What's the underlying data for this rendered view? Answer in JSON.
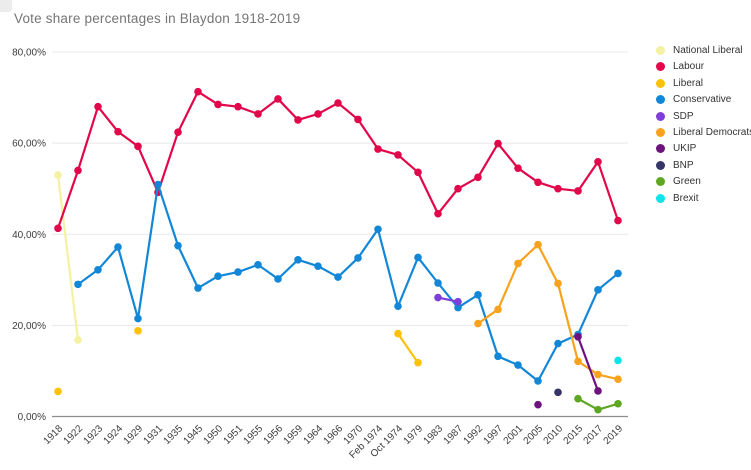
{
  "title": "Vote share percentages in Blaydon 1918-2019",
  "colors": {
    "background": "#ffffff",
    "title_text": "#757575",
    "grid_line": "#e8e8e8",
    "axis_line": "#8c8c8c",
    "tick_label": "#3d3d3d",
    "legend_label": "#333333"
  },
  "chart_data": {
    "type": "line",
    "title": "Vote share percentages in Blaydon 1918-2019",
    "xlabel": "",
    "ylabel": "",
    "grid": true,
    "legend_position": "right",
    "y_axis": {
      "min": 0,
      "max": 80,
      "tick_step": 20,
      "ticks": [
        "0,00%",
        "20,00%",
        "40,00%",
        "60,00%",
        "80,00%"
      ]
    },
    "categories": [
      "1918",
      "1922",
      "1923",
      "1924",
      "1929",
      "1931",
      "1935",
      "1945",
      "1950",
      "1951",
      "1955",
      "1956",
      "1959",
      "1964",
      "1966",
      "1970",
      "Feb 1974",
      "Oct 1974",
      "1979",
      "1983",
      "1987",
      "1992",
      "1997",
      "2001",
      "2005",
      "2010",
      "2015",
      "2017",
      "2019"
    ],
    "series": [
      {
        "name": "National Liberal",
        "color": "#f4f1a1",
        "values": [
          53,
          16.8,
          null,
          null,
          null,
          null,
          null,
          null,
          null,
          null,
          null,
          null,
          null,
          null,
          null,
          null,
          null,
          null,
          null,
          null,
          null,
          null,
          null,
          null,
          null,
          null,
          null,
          null,
          null
        ]
      },
      {
        "name": "Labour",
        "color": "#e2064a",
        "values": [
          41.3,
          54,
          68,
          62.5,
          59.3,
          49.2,
          62.4,
          71.3,
          68.5,
          68,
          66.4,
          69.7,
          65.1,
          66.4,
          68.8,
          65.2,
          58.7,
          57.4,
          53.6,
          44.5,
          50,
          52.5,
          59.9,
          54.5,
          51.4,
          50,
          49.5,
          55.9,
          43
        ]
      },
      {
        "name": "Liberal",
        "color": "#fdc208",
        "values": [
          5.5,
          null,
          null,
          null,
          18.8,
          null,
          null,
          null,
          null,
          null,
          null,
          null,
          null,
          null,
          null,
          null,
          null,
          18.2,
          11.8,
          null,
          null,
          null,
          null,
          null,
          null,
          null,
          null,
          null,
          null
        ]
      },
      {
        "name": "Conservative",
        "color": "#1287d8",
        "values": [
          null,
          29,
          32.2,
          37.2,
          21.5,
          50.9,
          37.5,
          28.2,
          30.8,
          31.7,
          33.3,
          30.2,
          34.4,
          33,
          30.6,
          34.8,
          41.1,
          24.2,
          34.9,
          29.3,
          23.9,
          26.7,
          13.2,
          11.3,
          7.8,
          16,
          18,
          27.8,
          31.4
        ]
      },
      {
        "name": "SDP",
        "color": "#7e3fd8",
        "values": [
          null,
          null,
          null,
          null,
          null,
          null,
          null,
          null,
          null,
          null,
          null,
          null,
          null,
          null,
          null,
          null,
          null,
          null,
          null,
          26.1,
          25.2,
          null,
          null,
          null,
          null,
          null,
          null,
          null,
          null
        ]
      },
      {
        "name": "Liberal Democrats",
        "color": "#f8a21d",
        "values": [
          null,
          null,
          null,
          null,
          null,
          null,
          null,
          null,
          null,
          null,
          null,
          null,
          null,
          null,
          null,
          null,
          null,
          null,
          null,
          null,
          null,
          20.4,
          23.5,
          33.6,
          37.7,
          29.2,
          12.1,
          9.2,
          8.2
        ]
      },
      {
        "name": "UKIP",
        "color": "#6d127e",
        "values": [
          null,
          null,
          null,
          null,
          null,
          null,
          null,
          null,
          null,
          null,
          null,
          null,
          null,
          null,
          null,
          null,
          null,
          null,
          null,
          null,
          null,
          null,
          null,
          null,
          2.6,
          null,
          17.5,
          5.6,
          null
        ]
      },
      {
        "name": "BNP",
        "color": "#363569",
        "values": [
          null,
          null,
          null,
          null,
          null,
          null,
          null,
          null,
          null,
          null,
          null,
          null,
          null,
          null,
          null,
          null,
          null,
          null,
          null,
          null,
          null,
          null,
          null,
          null,
          null,
          5.3,
          null,
          null,
          null
        ]
      },
      {
        "name": "Green",
        "color": "#5ea722",
        "values": [
          null,
          null,
          null,
          null,
          null,
          null,
          null,
          null,
          null,
          null,
          null,
          null,
          null,
          null,
          null,
          null,
          null,
          null,
          null,
          null,
          null,
          null,
          null,
          null,
          null,
          null,
          3.9,
          1.5,
          2.8
        ]
      },
      {
        "name": "Brexit",
        "color": "#0ce4ea",
        "values": [
          null,
          null,
          null,
          null,
          null,
          null,
          null,
          null,
          null,
          null,
          null,
          null,
          null,
          null,
          null,
          null,
          null,
          null,
          null,
          null,
          null,
          null,
          null,
          null,
          null,
          null,
          null,
          null,
          12.3
        ]
      }
    ]
  }
}
